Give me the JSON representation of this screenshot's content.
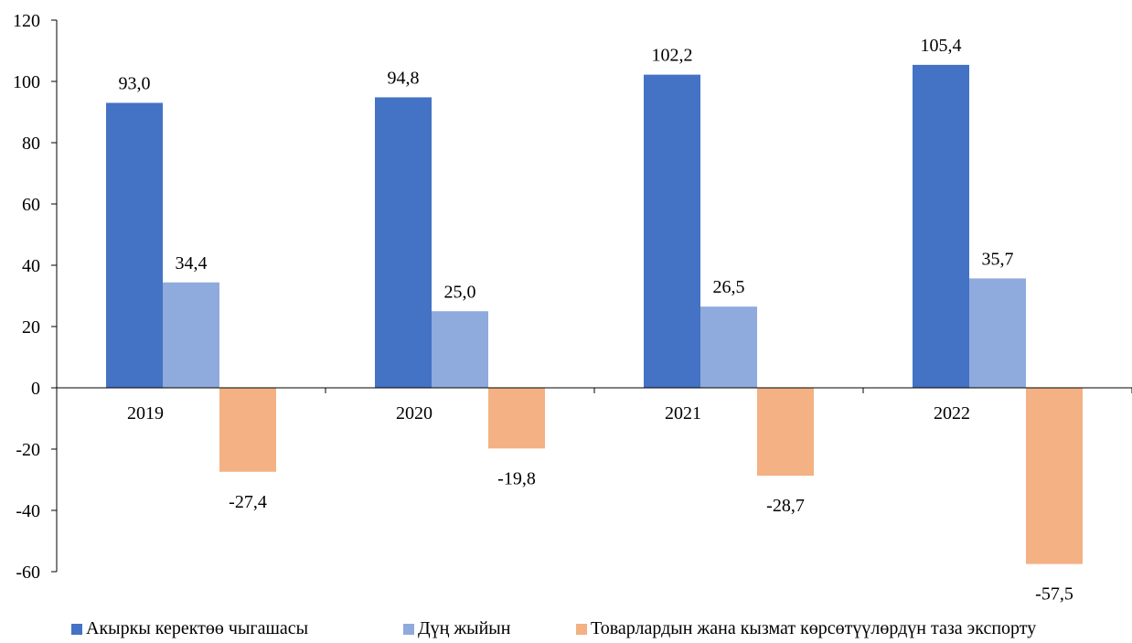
{
  "chart_data": {
    "type": "bar",
    "categories": [
      "2019",
      "2020",
      "2021",
      "2022"
    ],
    "series": [
      {
        "name": "Акыркы керектөө чыгашасы",
        "values": [
          93.0,
          94.8,
          102.2,
          105.4
        ],
        "labels": [
          "93,0",
          "94,8",
          "102,2",
          "105,4"
        ],
        "color": "#4472C4"
      },
      {
        "name": "Дүң жыйын",
        "values": [
          34.4,
          25.0,
          26.5,
          35.7
        ],
        "labels": [
          "34,4",
          "25,0",
          "26,5",
          "35,7"
        ],
        "color": "#8FAADC"
      },
      {
        "name": "Товарлардын жана кызмат көрсөтүүлөрдүн таза экспорту",
        "values": [
          -27.4,
          -19.8,
          -28.7,
          -57.5
        ],
        "labels": [
          "-27,4",
          "-19,8",
          "-28,7",
          "-57,5"
        ],
        "color": "#F4B183"
      }
    ],
    "ylim": [
      -60,
      120
    ],
    "yticks": [
      "-60",
      "-40",
      "-20",
      "0",
      "20",
      "40",
      "60",
      "80",
      "100",
      "120"
    ],
    "grid": false,
    "legend_position": "bottom"
  }
}
